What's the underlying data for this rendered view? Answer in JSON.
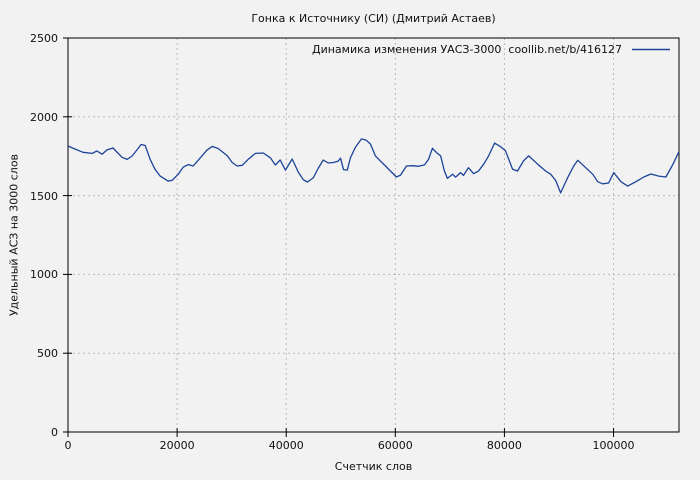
{
  "window": {
    "background": "#f2f2f2"
  },
  "chart_data": {
    "type": "line",
    "title": "Гонка к Источнику (СИ) (Дмитрий Астаев)",
    "legend": {
      "label": "Динамика изменения УАСЗ-3000  coollib.net/b/416127",
      "position": "top-right-inside"
    },
    "xlabel": "Счетчик слов",
    "ylabel": "Удельный АСЗ на 3000 слов",
    "xlim": [
      0,
      112000
    ],
    "ylim": [
      0,
      2500
    ],
    "xticks": [
      0,
      20000,
      40000,
      60000,
      80000,
      100000
    ],
    "yticks": [
      0,
      500,
      1000,
      1500,
      2000,
      2500
    ],
    "grid": true,
    "colors": {
      "line": "#1c4399",
      "grid": "#b9b9b9",
      "axis": "#000000",
      "text": "#111111",
      "background": "#f2f2f2"
    },
    "series": [
      {
        "name": "Динамика изменения УАСЗ-3000  coollib.net/b/416127",
        "points": [
          [
            0,
            1815
          ],
          [
            1300,
            1795
          ],
          [
            2750,
            1775
          ],
          [
            4400,
            1768
          ],
          [
            5300,
            1783
          ],
          [
            6250,
            1763
          ],
          [
            7150,
            1790
          ],
          [
            8250,
            1802
          ],
          [
            9900,
            1743
          ],
          [
            10850,
            1730
          ],
          [
            11750,
            1751
          ],
          [
            12650,
            1790
          ],
          [
            13400,
            1824
          ],
          [
            14150,
            1818
          ],
          [
            15050,
            1731
          ],
          [
            15950,
            1667
          ],
          [
            16900,
            1624
          ],
          [
            18350,
            1592
          ],
          [
            19100,
            1597
          ],
          [
            20200,
            1636
          ],
          [
            21100,
            1680
          ],
          [
            22050,
            1697
          ],
          [
            22950,
            1688
          ],
          [
            24250,
            1740
          ],
          [
            25500,
            1790
          ],
          [
            26450,
            1812
          ],
          [
            27550,
            1798
          ],
          [
            29200,
            1753
          ],
          [
            30100,
            1710
          ],
          [
            31000,
            1688
          ],
          [
            31950,
            1692
          ],
          [
            33050,
            1731
          ],
          [
            34350,
            1768
          ],
          [
            35800,
            1770
          ],
          [
            37100,
            1740
          ],
          [
            38000,
            1694
          ],
          [
            38900,
            1726
          ],
          [
            39850,
            1662
          ],
          [
            41100,
            1732
          ],
          [
            42200,
            1650
          ],
          [
            43150,
            1600
          ],
          [
            43900,
            1586
          ],
          [
            44950,
            1612
          ],
          [
            45900,
            1675
          ],
          [
            46800,
            1726
          ],
          [
            47700,
            1707
          ],
          [
            48650,
            1710
          ],
          [
            49550,
            1719
          ],
          [
            49950,
            1738
          ],
          [
            50500,
            1665
          ],
          [
            51200,
            1662
          ],
          [
            51750,
            1738
          ],
          [
            52700,
            1808
          ],
          [
            53800,
            1860
          ],
          [
            54700,
            1851
          ],
          [
            55450,
            1827
          ],
          [
            56350,
            1752
          ],
          [
            57250,
            1720
          ],
          [
            58200,
            1688
          ],
          [
            59100,
            1656
          ],
          [
            60200,
            1618
          ],
          [
            60950,
            1630
          ],
          [
            62050,
            1688
          ],
          [
            63150,
            1690
          ],
          [
            64250,
            1686
          ],
          [
            65350,
            1695
          ],
          [
            66100,
            1731
          ],
          [
            66800,
            1800
          ],
          [
            67550,
            1773
          ],
          [
            68300,
            1752
          ],
          [
            69000,
            1656
          ],
          [
            69550,
            1609
          ],
          [
            70500,
            1636
          ],
          [
            71050,
            1617
          ],
          [
            71950,
            1646
          ],
          [
            72500,
            1628
          ],
          [
            73400,
            1677
          ],
          [
            74350,
            1639
          ],
          [
            75250,
            1656
          ],
          [
            76200,
            1699
          ],
          [
            77100,
            1752
          ],
          [
            78200,
            1833
          ],
          [
            79300,
            1810
          ],
          [
            80200,
            1784
          ],
          [
            81500,
            1667
          ],
          [
            82400,
            1656
          ],
          [
            83500,
            1720
          ],
          [
            84450,
            1752
          ],
          [
            86100,
            1699
          ],
          [
            87550,
            1656
          ],
          [
            88500,
            1635
          ],
          [
            89400,
            1596
          ],
          [
            90300,
            1517
          ],
          [
            91600,
            1614
          ],
          [
            92700,
            1688
          ],
          [
            93450,
            1724
          ],
          [
            94900,
            1677
          ],
          [
            96200,
            1635
          ],
          [
            97100,
            1588
          ],
          [
            98000,
            1575
          ],
          [
            99100,
            1580
          ],
          [
            100050,
            1646
          ],
          [
            101350,
            1588
          ],
          [
            102600,
            1560
          ],
          [
            104100,
            1588
          ],
          [
            105550,
            1618
          ],
          [
            106850,
            1637
          ],
          [
            108300,
            1624
          ],
          [
            109600,
            1618
          ],
          [
            110900,
            1699
          ],
          [
            112000,
            1780
          ]
        ]
      }
    ]
  }
}
